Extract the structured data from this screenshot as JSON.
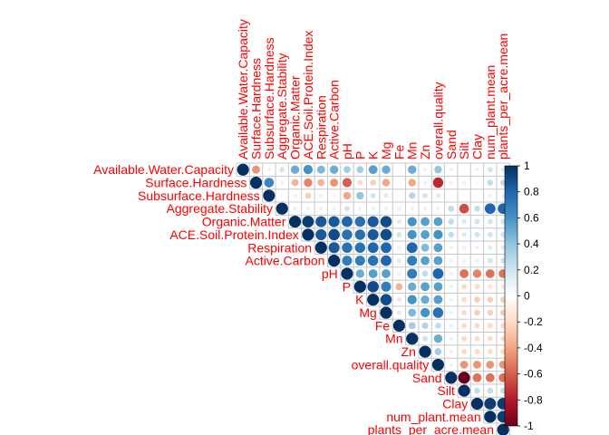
{
  "chart_data": {
    "type": "correlation-matrix",
    "shape": "upper-triangle-circles",
    "variables": [
      "Available.Water.Capacity",
      "Surface.Hardness",
      "Subsurface.Hardness",
      "Aggregate.Stability",
      "Organic.Matter",
      "ACE.Soil.Protein.Index",
      "Respiration",
      "Active.Carbon",
      "pH",
      "P",
      "K",
      "Mg",
      "Fe",
      "Mn",
      "Zn",
      "overall.quality",
      "Sand",
      "Silt",
      "Clay",
      "num_plant.mean",
      "plants_per_acre.mean"
    ],
    "matrix": [
      [
        1.0,
        -0.45,
        0.1,
        0.2,
        0.5,
        0.6,
        0.45,
        0.5,
        0.35,
        0.35,
        0.55,
        0.5,
        0.05,
        0.5,
        0.1,
        0.4,
        0.1,
        0.05,
        0.1,
        0.2,
        0.15
      ],
      [
        null,
        1.0,
        0.65,
        -0.1,
        -0.35,
        -0.5,
        -0.35,
        -0.45,
        -0.6,
        -0.2,
        -0.25,
        -0.4,
        0.05,
        -0.4,
        0.1,
        -0.75,
        0.1,
        0.1,
        0.05,
        0.25,
        0.25
      ],
      [
        null,
        null,
        1.0,
        0.05,
        0.1,
        -0.25,
        0.1,
        0.05,
        -0.4,
        0.4,
        0.2,
        0.15,
        0.05,
        0.3,
        0.2,
        0.15,
        0.05,
        0.05,
        0.05,
        0.1,
        0.1
      ],
      [
        null,
        null,
        null,
        1.0,
        0.1,
        0.1,
        0.1,
        0.1,
        0.2,
        0.1,
        0.1,
        0.1,
        0.1,
        0.1,
        0.1,
        0.1,
        0.25,
        -0.65,
        0.25,
        0.8,
        0.8
      ],
      [
        null,
        null,
        null,
        null,
        1.0,
        0.95,
        0.85,
        0.85,
        0.8,
        0.75,
        0.85,
        0.9,
        0.15,
        0.6,
        0.55,
        0.55,
        0.25,
        0.15,
        0.2,
        0.2,
        0.2
      ],
      [
        null,
        null,
        null,
        null,
        null,
        1.0,
        0.85,
        0.9,
        0.75,
        0.75,
        0.85,
        0.9,
        0.2,
        0.6,
        0.55,
        0.6,
        0.25,
        0.15,
        0.2,
        0.2,
        0.2
      ],
      [
        null,
        null,
        null,
        null,
        null,
        null,
        1.0,
        0.85,
        0.75,
        0.75,
        0.8,
        0.8,
        0.1,
        0.8,
        0.45,
        0.55,
        0.1,
        0.1,
        0.1,
        0.15,
        0.15
      ],
      [
        null,
        null,
        null,
        null,
        null,
        null,
        null,
        1.0,
        0.7,
        0.7,
        0.75,
        0.8,
        0.15,
        0.7,
        0.55,
        0.55,
        0.1,
        0.1,
        0.1,
        0.2,
        0.2
      ],
      [
        null,
        null,
        null,
        null,
        null,
        null,
        null,
        null,
        1.0,
        0.5,
        0.55,
        0.55,
        0.1,
        0.7,
        0.25,
        0.8,
        0.1,
        -0.55,
        -0.5,
        -0.55,
        -0.55
      ],
      [
        null,
        null,
        null,
        null,
        null,
        null,
        null,
        null,
        null,
        1.0,
        0.9,
        0.7,
        -0.35,
        0.5,
        0.55,
        0.55,
        0.1,
        -0.2,
        -0.2,
        -0.15,
        -0.15
      ],
      [
        null,
        null,
        null,
        null,
        null,
        null,
        null,
        null,
        null,
        null,
        1.0,
        0.9,
        -0.15,
        0.6,
        0.5,
        0.55,
        0.1,
        -0.2,
        -0.25,
        -0.25,
        -0.25
      ],
      [
        null,
        null,
        null,
        null,
        null,
        null,
        null,
        null,
        null,
        null,
        null,
        1.0,
        0.15,
        0.45,
        0.6,
        0.75,
        0.1,
        -0.2,
        -0.25,
        -0.25,
        -0.25
      ],
      [
        null,
        null,
        null,
        null,
        null,
        null,
        null,
        null,
        null,
        null,
        null,
        null,
        1.0,
        0.35,
        0.3,
        0.25,
        0.1,
        -0.2,
        -0.2,
        -0.2,
        -0.2
      ],
      [
        null,
        null,
        null,
        null,
        null,
        null,
        null,
        null,
        null,
        null,
        null,
        null,
        null,
        1.0,
        0.2,
        0.5,
        0.1,
        -0.2,
        -0.2,
        -0.2,
        -0.2
      ],
      [
        null,
        null,
        null,
        null,
        null,
        null,
        null,
        null,
        null,
        null,
        null,
        null,
        null,
        null,
        1.0,
        0.35,
        0.1,
        -0.2,
        -0.2,
        -0.2,
        -0.2
      ],
      [
        null,
        null,
        null,
        null,
        null,
        null,
        null,
        null,
        null,
        null,
        null,
        null,
        null,
        null,
        null,
        1.0,
        0.1,
        -0.45,
        -0.45,
        -0.45,
        -0.45
      ],
      [
        null,
        null,
        null,
        null,
        null,
        null,
        null,
        null,
        null,
        null,
        null,
        null,
        null,
        null,
        null,
        null,
        1.0,
        -1.0,
        -0.55,
        -0.55,
        -0.55
      ],
      [
        null,
        null,
        null,
        null,
        null,
        null,
        null,
        null,
        null,
        null,
        null,
        null,
        null,
        null,
        null,
        null,
        null,
        1.0,
        0.25,
        0.25,
        0.25
      ],
      [
        null,
        null,
        null,
        null,
        null,
        null,
        null,
        null,
        null,
        null,
        null,
        null,
        null,
        null,
        null,
        null,
        null,
        null,
        1.0,
        0.95,
        0.95
      ],
      [
        null,
        null,
        null,
        null,
        null,
        null,
        null,
        null,
        null,
        null,
        null,
        null,
        null,
        null,
        null,
        null,
        null,
        null,
        null,
        1.0,
        0.95
      ],
      [
        null,
        null,
        null,
        null,
        null,
        null,
        null,
        null,
        null,
        null,
        null,
        null,
        null,
        null,
        null,
        null,
        null,
        null,
        null,
        null,
        1.0
      ]
    ],
    "colorbar": {
      "range": [
        -1,
        1
      ],
      "ticks": [
        "1",
        "0.8",
        "0.6",
        "0.4",
        "0.2",
        "0",
        "-0.2",
        "-0.4",
        "-0.6",
        "-0.8",
        "-1"
      ]
    },
    "colors": {
      "negative_extreme": "#67001f",
      "negative_mid": "#d6604d",
      "neutral": "#ffffff",
      "positive_mid": "#4393c3",
      "positive_extreme": "#053061",
      "label": "#ff0000"
    }
  }
}
